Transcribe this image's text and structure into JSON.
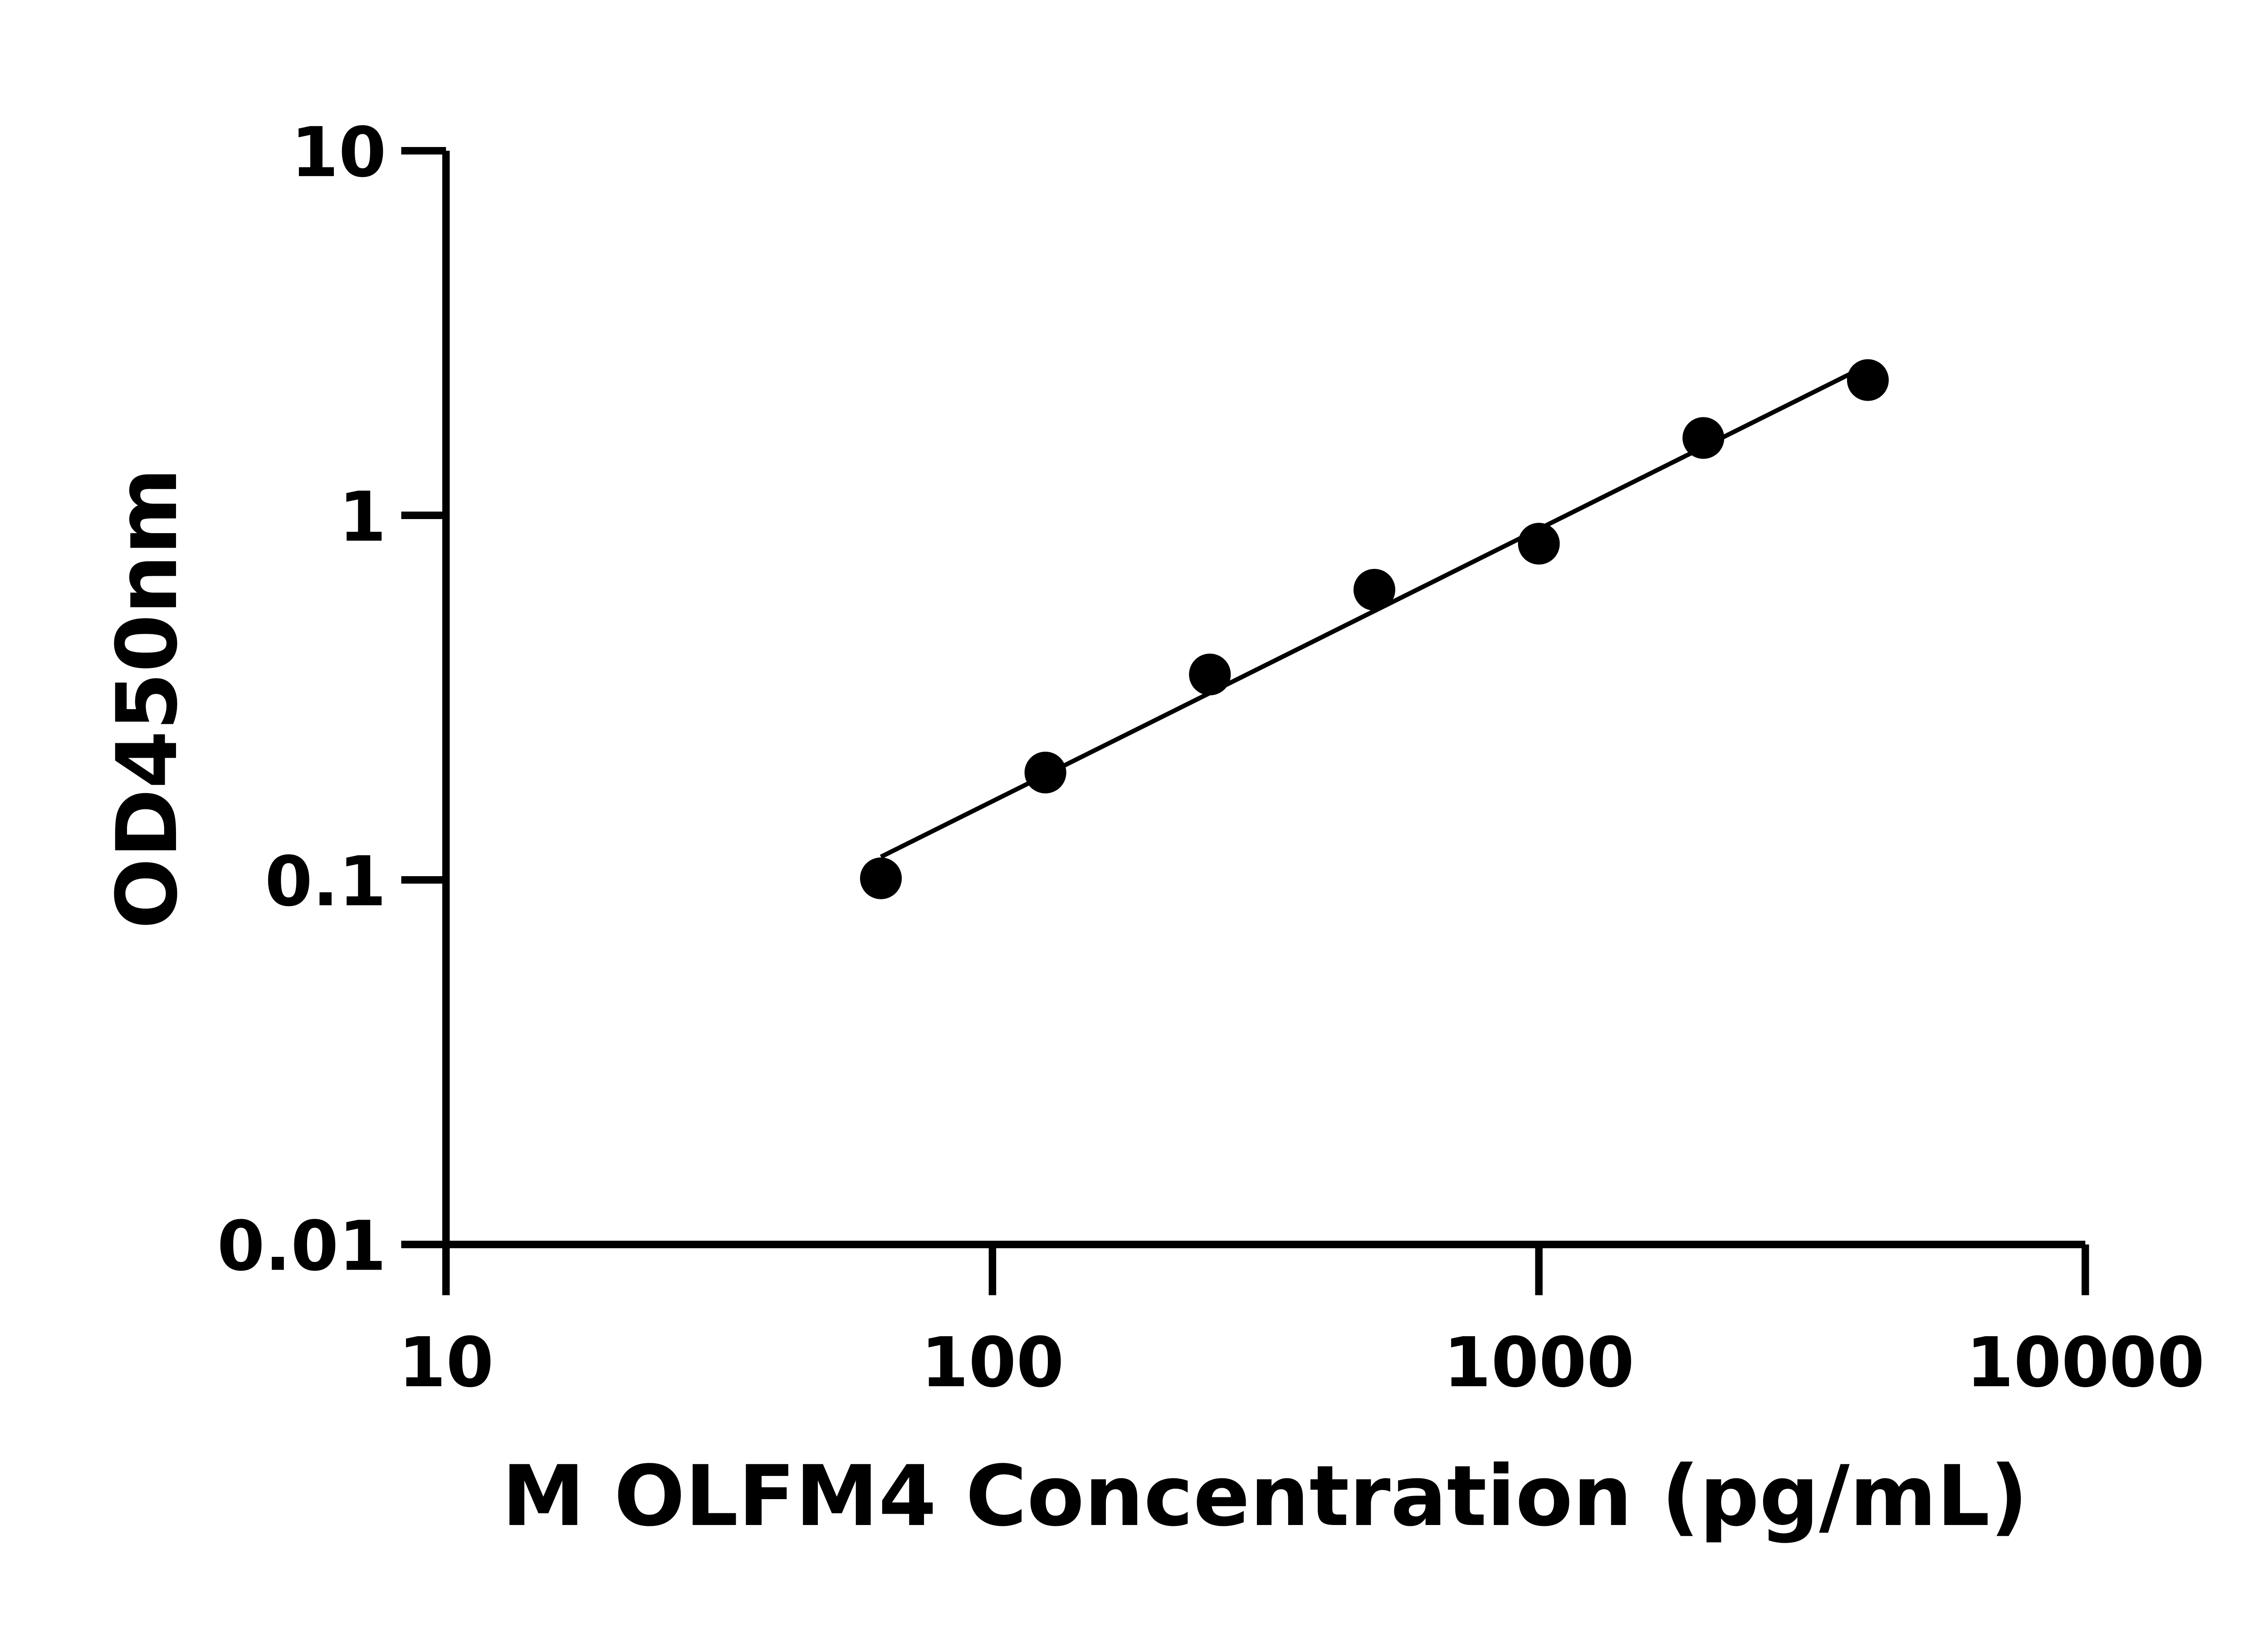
{
  "chart_data": {
    "type": "scatter",
    "title": "",
    "xlabel": "M OLFM4 Concentration (pg/mL)",
    "ylabel": "OD450nm",
    "x_scale": "log",
    "y_scale": "log",
    "xlim": [
      10,
      10000
    ],
    "ylim": [
      0.01,
      10
    ],
    "x_ticks": [
      "10",
      "100",
      "1000",
      "10000"
    ],
    "y_ticks": [
      "0.01",
      "0.1",
      "1",
      "10"
    ],
    "grid": false,
    "fit_line": "log-log linear fit",
    "colors": {
      "points": "#000000",
      "line": "#000000",
      "axes": "#000000"
    },
    "series": [
      {
        "x": [
          62.5,
          125,
          250,
          500,
          1000,
          2000,
          4000
        ],
        "y": [
          0.101,
          0.197,
          0.366,
          0.625,
          0.836,
          1.63,
          2.35
        ]
      }
    ]
  }
}
